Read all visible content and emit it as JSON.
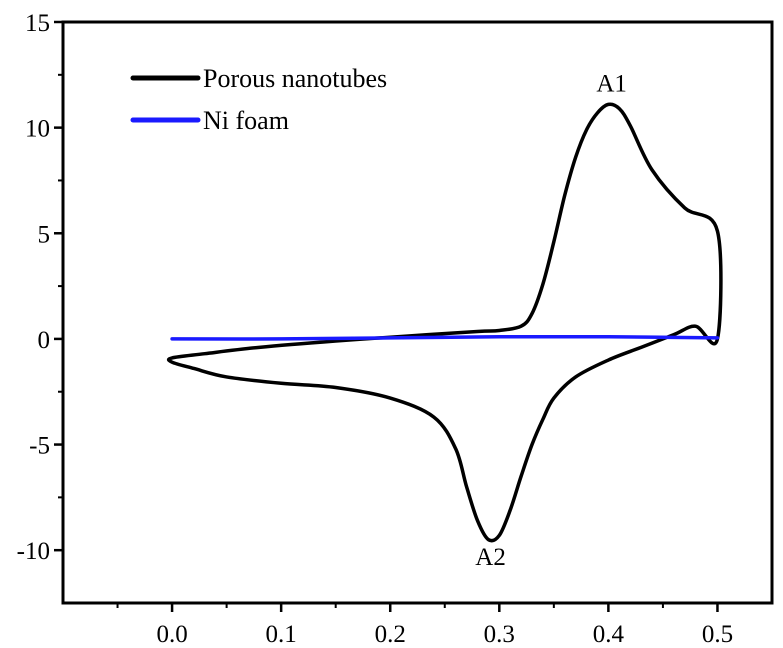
{
  "chart_data": {
    "type": "line",
    "title": "",
    "xlabel": "",
    "ylabel": "",
    "xlim": [
      -0.1,
      0.55
    ],
    "ylim": [
      -12.5,
      15
    ],
    "x_ticks": [
      0.0,
      0.1,
      0.2,
      0.3,
      0.4,
      0.5
    ],
    "x_tick_labels": [
      "0.0",
      "0.1",
      "0.2",
      "0.3",
      "0.4",
      "0.5"
    ],
    "y_ticks": [
      -10,
      -5,
      0,
      5,
      10,
      15
    ],
    "y_tick_labels": [
      "-10",
      "-5",
      "0",
      "5",
      "10",
      "15"
    ],
    "grid": false,
    "legend_position": "top-left",
    "series": [
      {
        "name": "Porous nanotubes",
        "color": "#000000",
        "x": [
          0.0,
          0.03,
          0.08,
          0.15,
          0.22,
          0.28,
          0.3,
          0.32,
          0.33,
          0.34,
          0.35,
          0.36,
          0.37,
          0.38,
          0.39,
          0.4,
          0.41,
          0.42,
          0.44,
          0.47,
          0.5,
          0.5,
          0.48,
          0.46,
          0.43,
          0.4,
          0.37,
          0.35,
          0.34,
          0.33,
          0.32,
          0.31,
          0.3,
          0.29,
          0.28,
          0.27,
          0.26,
          0.24,
          0.2,
          0.15,
          0.1,
          0.05,
          0.02,
          0.0
        ],
        "y": [
          -0.9,
          -0.7,
          -0.4,
          -0.1,
          0.15,
          0.35,
          0.4,
          0.6,
          1.2,
          2.6,
          4.6,
          6.8,
          8.6,
          9.9,
          10.7,
          11.1,
          10.9,
          10.1,
          8.0,
          6.2,
          5.1,
          0.0,
          0.6,
          0.2,
          -0.4,
          -1.0,
          -1.8,
          -2.8,
          -3.8,
          -5.0,
          -6.5,
          -8.1,
          -9.3,
          -9.5,
          -8.6,
          -7.0,
          -5.2,
          -3.7,
          -2.8,
          -2.3,
          -2.1,
          -1.8,
          -1.4,
          -1.1
        ]
      },
      {
        "name": "Ni foam",
        "color": "#1a1aff",
        "x": [
          0.0,
          0.1,
          0.2,
          0.3,
          0.4,
          0.5
        ],
        "y": [
          0.0,
          0.0,
          0.05,
          0.1,
          0.1,
          0.05
        ]
      }
    ],
    "annotations": [
      {
        "text": "A1",
        "x": 0.403,
        "y": 11.7
      },
      {
        "text": "A2",
        "x": 0.292,
        "y": -10.7
      }
    ]
  }
}
